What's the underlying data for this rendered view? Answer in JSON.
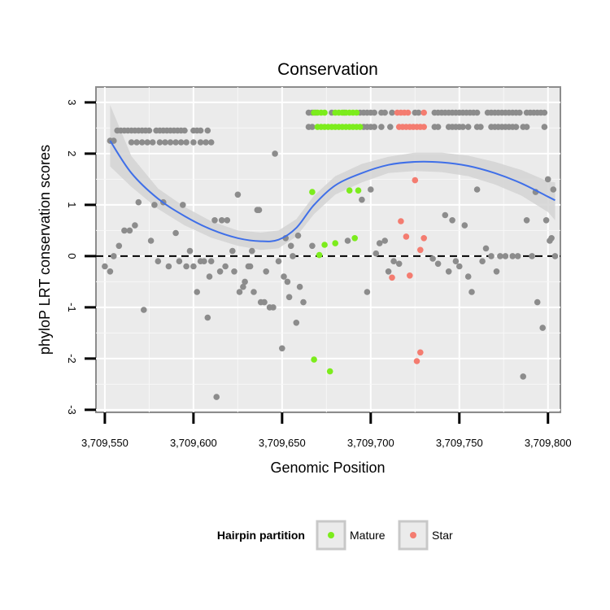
{
  "chart_data": {
    "type": "scatter",
    "title": "Conservation",
    "xlabel": "Genomic Position",
    "ylabel": "phyloP LRT conservation scores",
    "xlim": [
      3709545,
      3709807
    ],
    "ylim": [
      -3.05,
      3.3
    ],
    "x_ticks": [
      3709550,
      3709600,
      3709650,
      3709700,
      3709750,
      3709800
    ],
    "x_tick_labels": [
      "3,709,550",
      "3,709,600",
      "3,709,650",
      "3,709,700",
      "3,709,750",
      "3,709,800"
    ],
    "y_ticks": [
      -3,
      -2,
      -1,
      0,
      1,
      2,
      3
    ],
    "y_tick_labels": [
      "-3",
      "-2",
      "-1",
      "0",
      "1",
      "2",
      "3"
    ],
    "reference_line": {
      "y": 0,
      "style": "dashed"
    },
    "grid": true,
    "colors": {
      "other": "#8c8c8c",
      "Mature": "#7cec1c",
      "Star": "#f47c70",
      "smooth": "#3f6fe8",
      "ribbon": "#d4d4d4",
      "panel": "#ebebeb"
    },
    "legend": {
      "title": "Hairpin partition",
      "position": "bottom",
      "items": [
        {
          "label": "Mature",
          "color": "#7cec1c"
        },
        {
          "label": "Star",
          "color": "#f47c70"
        }
      ]
    },
    "smooth": {
      "x": [
        3709553,
        3709565,
        3709580,
        3709595,
        3709610,
        3709625,
        3709638,
        3709648,
        3709658,
        3709668,
        3709680,
        3709695,
        3709710,
        3709725,
        3709740,
        3709755,
        3709770,
        3709785,
        3709800,
        3709804
      ],
      "y": [
        2.25,
        1.62,
        1.12,
        0.78,
        0.52,
        0.35,
        0.29,
        0.32,
        0.55,
        1.0,
        1.38,
        1.62,
        1.78,
        1.84,
        1.83,
        1.76,
        1.62,
        1.42,
        1.16,
        1.09
      ],
      "lower": [
        1.75,
        1.35,
        0.92,
        0.6,
        0.36,
        0.2,
        0.12,
        0.15,
        0.38,
        0.82,
        1.2,
        1.44,
        1.62,
        1.66,
        1.64,
        1.56,
        1.4,
        1.18,
        0.86,
        0.7
      ],
      "upper": [
        2.95,
        1.95,
        1.32,
        0.96,
        0.68,
        0.5,
        0.46,
        0.5,
        0.72,
        1.18,
        1.56,
        1.8,
        1.94,
        2.02,
        2.02,
        1.96,
        1.84,
        1.68,
        1.46,
        1.44
      ]
    },
    "series": [
      {
        "name": "Other",
        "points": [
          [
            3709553,
            2.25
          ],
          [
            3709555,
            2.25
          ],
          [
            3709557,
            2.45
          ],
          [
            3709559,
            2.45
          ],
          [
            3709561,
            2.45
          ],
          [
            3709563,
            2.45
          ],
          [
            3709565,
            2.45
          ],
          [
            3709567,
            2.45
          ],
          [
            3709569,
            2.45
          ],
          [
            3709571,
            2.45
          ],
          [
            3709573,
            2.45
          ],
          [
            3709575,
            2.45
          ],
          [
            3709565,
            2.22
          ],
          [
            3709568,
            2.22
          ],
          [
            3709571,
            2.22
          ],
          [
            3709574,
            2.22
          ],
          [
            3709577,
            2.22
          ],
          [
            3709579,
            2.45
          ],
          [
            3709581,
            2.45
          ],
          [
            3709583,
            2.45
          ],
          [
            3709585,
            2.45
          ],
          [
            3709587,
            2.45
          ],
          [
            3709589,
            2.45
          ],
          [
            3709591,
            2.45
          ],
          [
            3709593,
            2.45
          ],
          [
            3709595,
            2.45
          ],
          [
            3709581,
            2.22
          ],
          [
            3709584,
            2.22
          ],
          [
            3709587,
            2.22
          ],
          [
            3709590,
            2.22
          ],
          [
            3709593,
            2.22
          ],
          [
            3709596,
            2.22
          ],
          [
            3709600,
            2.45
          ],
          [
            3709602,
            2.45
          ],
          [
            3709604,
            2.45
          ],
          [
            3709608,
            2.45
          ],
          [
            3709600,
            2.22
          ],
          [
            3709604,
            2.22
          ],
          [
            3709607,
            2.22
          ],
          [
            3709610,
            2.22
          ],
          [
            3709665,
            2.8
          ],
          [
            3709667,
            2.8
          ],
          [
            3709669,
            2.8
          ],
          [
            3709678,
            2.8
          ],
          [
            3709685,
            2.8
          ],
          [
            3709694,
            2.8
          ],
          [
            3709696,
            2.8
          ],
          [
            3709698,
            2.8
          ],
          [
            3709700,
            2.8
          ],
          [
            3709702,
            2.8
          ],
          [
            3709706,
            2.8
          ],
          [
            3709708,
            2.8
          ],
          [
            3709712,
            2.8
          ],
          [
            3709725,
            2.8
          ],
          [
            3709727,
            2.8
          ],
          [
            3709736,
            2.8
          ],
          [
            3709738,
            2.8
          ],
          [
            3709740,
            2.8
          ],
          [
            3709742,
            2.8
          ],
          [
            3709744,
            2.8
          ],
          [
            3709746,
            2.8
          ],
          [
            3709748,
            2.8
          ],
          [
            3709750,
            2.8
          ],
          [
            3709752,
            2.8
          ],
          [
            3709754,
            2.8
          ],
          [
            3709756,
            2.8
          ],
          [
            3709758,
            2.8
          ],
          [
            3709760,
            2.8
          ],
          [
            3709766,
            2.8
          ],
          [
            3709768,
            2.8
          ],
          [
            3709770,
            2.8
          ],
          [
            3709772,
            2.8
          ],
          [
            3709774,
            2.8
          ],
          [
            3709776,
            2.8
          ],
          [
            3709778,
            2.8
          ],
          [
            3709780,
            2.8
          ],
          [
            3709782,
            2.8
          ],
          [
            3709784,
            2.8
          ],
          [
            3709788,
            2.8
          ],
          [
            3709790,
            2.8
          ],
          [
            3709792,
            2.8
          ],
          [
            3709794,
            2.8
          ],
          [
            3709796,
            2.8
          ],
          [
            3709798,
            2.8
          ],
          [
            3709665,
            2.52
          ],
          [
            3709667,
            2.52
          ],
          [
            3709696,
            2.52
          ],
          [
            3709698,
            2.52
          ],
          [
            3709700,
            2.52
          ],
          [
            3709702,
            2.52
          ],
          [
            3709706,
            2.52
          ],
          [
            3709711,
            2.52
          ],
          [
            3709736,
            2.52
          ],
          [
            3709738,
            2.52
          ],
          [
            3709744,
            2.52
          ],
          [
            3709746,
            2.52
          ],
          [
            3709748,
            2.52
          ],
          [
            3709750,
            2.52
          ],
          [
            3709752,
            2.52
          ],
          [
            3709755,
            2.52
          ],
          [
            3709760,
            2.52
          ],
          [
            3709762,
            2.52
          ],
          [
            3709768,
            2.52
          ],
          [
            3709770,
            2.52
          ],
          [
            3709772,
            2.52
          ],
          [
            3709774,
            2.52
          ],
          [
            3709776,
            2.52
          ],
          [
            3709778,
            2.52
          ],
          [
            3709780,
            2.52
          ],
          [
            3709782,
            2.52
          ],
          [
            3709786,
            2.52
          ],
          [
            3709788,
            2.52
          ],
          [
            3709798,
            2.52
          ],
          [
            3709550,
            -0.2
          ],
          [
            3709553,
            -0.3
          ],
          [
            3709555,
            0.0
          ],
          [
            3709558,
            0.2
          ],
          [
            3709561,
            0.5
          ],
          [
            3709564,
            0.5
          ],
          [
            3709567,
            0.6
          ],
          [
            3709569,
            1.05
          ],
          [
            3709572,
            -1.05
          ],
          [
            3709576,
            0.3
          ],
          [
            3709578,
            1.0
          ],
          [
            3709580,
            -0.1
          ],
          [
            3709583,
            1.05
          ],
          [
            3709586,
            -0.2
          ],
          [
            3709590,
            0.45
          ],
          [
            3709592,
            -0.1
          ],
          [
            3709594,
            1.0
          ],
          [
            3709596,
            -0.2
          ],
          [
            3709598,
            0.1
          ],
          [
            3709600,
            -0.2
          ],
          [
            3709602,
            -0.7
          ],
          [
            3709604,
            -0.1
          ],
          [
            3709606,
            -0.1
          ],
          [
            3709608,
            -1.2
          ],
          [
            3709609,
            -0.4
          ],
          [
            3709610,
            -0.1
          ],
          [
            3709612,
            0.7
          ],
          [
            3709613,
            -2.75
          ],
          [
            3709615,
            -0.3
          ],
          [
            3709616,
            0.7
          ],
          [
            3709618,
            -0.2
          ],
          [
            3709619,
            0.7
          ],
          [
            3709622,
            0.1
          ],
          [
            3709623,
            -0.3
          ],
          [
            3709625,
            1.2
          ],
          [
            3709626,
            -0.7
          ],
          [
            3709628,
            -0.6
          ],
          [
            3709629,
            -0.5
          ],
          [
            3709631,
            -0.2
          ],
          [
            3709632,
            -0.2
          ],
          [
            3709633,
            0.1
          ],
          [
            3709634,
            -0.7
          ],
          [
            3709636,
            0.9
          ],
          [
            3709637,
            0.9
          ],
          [
            3709638,
            -0.9
          ],
          [
            3709640,
            -0.9
          ],
          [
            3709641,
            -0.3
          ],
          [
            3709643,
            -1.0
          ],
          [
            3709645,
            -1.0
          ],
          [
            3709646,
            2.0
          ],
          [
            3709648,
            -0.1
          ],
          [
            3709650,
            -1.8
          ],
          [
            3709651,
            -0.4
          ],
          [
            3709652,
            0.35
          ],
          [
            3709653,
            -0.5
          ],
          [
            3709654,
            -0.8
          ],
          [
            3709655,
            0.2
          ],
          [
            3709656,
            0.0
          ],
          [
            3709658,
            -1.3
          ],
          [
            3709659,
            0.4
          ],
          [
            3709660,
            -0.6
          ],
          [
            3709662,
            -0.9
          ],
          [
            3709667,
            0.2
          ],
          [
            3709687,
            0.3
          ],
          [
            3709695,
            1.1
          ],
          [
            3709698,
            -0.7
          ],
          [
            3709700,
            1.3
          ],
          [
            3709703,
            0.05
          ],
          [
            3709705,
            0.25
          ],
          [
            3709708,
            0.3
          ],
          [
            3709710,
            -0.3
          ],
          [
            3709713,
            -0.1
          ],
          [
            3709716,
            -0.15
          ],
          [
            3709735,
            -0.05
          ],
          [
            3709738,
            -0.15
          ],
          [
            3709742,
            0.8
          ],
          [
            3709744,
            -0.3
          ],
          [
            3709746,
            0.7
          ],
          [
            3709748,
            -0.1
          ],
          [
            3709750,
            -0.2
          ],
          [
            3709753,
            0.6
          ],
          [
            3709755,
            -0.4
          ],
          [
            3709757,
            -0.7
          ],
          [
            3709760,
            1.3
          ],
          [
            3709763,
            -0.1
          ],
          [
            3709765,
            0.15
          ],
          [
            3709768,
            0.0
          ],
          [
            3709771,
            -0.3
          ],
          [
            3709773,
            0.0
          ],
          [
            3709776,
            0.0
          ],
          [
            3709780,
            0.0
          ],
          [
            3709783,
            0.0
          ],
          [
            3709786,
            -2.35
          ],
          [
            3709788,
            0.7
          ],
          [
            3709791,
            0.0
          ],
          [
            3709793,
            1.25
          ],
          [
            3709794,
            -0.9
          ],
          [
            3709797,
            -1.4
          ],
          [
            3709799,
            0.7
          ],
          [
            3709800,
            1.5
          ],
          [
            3709801,
            0.3
          ],
          [
            3709802,
            0.35
          ],
          [
            3709803,
            1.3
          ],
          [
            3709804,
            0.0
          ]
        ]
      },
      {
        "name": "Mature",
        "points": [
          [
            3709668,
            2.8
          ],
          [
            3709670,
            2.8
          ],
          [
            3709672,
            2.8
          ],
          [
            3709674,
            2.8
          ],
          [
            3709680,
            2.8
          ],
          [
            3709682,
            2.8
          ],
          [
            3709684,
            2.8
          ],
          [
            3709686,
            2.8
          ],
          [
            3709688,
            2.8
          ],
          [
            3709690,
            2.8
          ],
          [
            3709692,
            2.8
          ],
          [
            3709670,
            2.52
          ],
          [
            3709672,
            2.52
          ],
          [
            3709674,
            2.52
          ],
          [
            3709676,
            2.52
          ],
          [
            3709678,
            2.52
          ],
          [
            3709680,
            2.52
          ],
          [
            3709682,
            2.52
          ],
          [
            3709684,
            2.52
          ],
          [
            3709686,
            2.52
          ],
          [
            3709688,
            2.52
          ],
          [
            3709690,
            2.52
          ],
          [
            3709692,
            2.52
          ],
          [
            3709694,
            2.52
          ],
          [
            3709667,
            1.25
          ],
          [
            3709671,
            0.02
          ],
          [
            3709674,
            0.22
          ],
          [
            3709680,
            0.25
          ],
          [
            3709688,
            1.28
          ],
          [
            3709691,
            0.35
          ],
          [
            3709693,
            1.28
          ],
          [
            3709668,
            -2.02
          ],
          [
            3709677,
            -2.25
          ]
        ]
      },
      {
        "name": "Star",
        "points": [
          [
            3709715,
            2.8
          ],
          [
            3709717,
            2.8
          ],
          [
            3709719,
            2.8
          ],
          [
            3709721,
            2.8
          ],
          [
            3709730,
            2.8
          ],
          [
            3709716,
            2.52
          ],
          [
            3709718,
            2.52
          ],
          [
            3709720,
            2.52
          ],
          [
            3709722,
            2.52
          ],
          [
            3709724,
            2.52
          ],
          [
            3709726,
            2.52
          ],
          [
            3709728,
            2.52
          ],
          [
            3709730,
            2.52
          ],
          [
            3709712,
            -0.42
          ],
          [
            3709717,
            0.68
          ],
          [
            3709720,
            0.38
          ],
          [
            3709722,
            -0.38
          ],
          [
            3709725,
            1.48
          ],
          [
            3709728,
            0.12
          ],
          [
            3709730,
            0.35
          ],
          [
            3709726,
            -2.05
          ],
          [
            3709728,
            -1.88
          ]
        ]
      }
    ]
  }
}
